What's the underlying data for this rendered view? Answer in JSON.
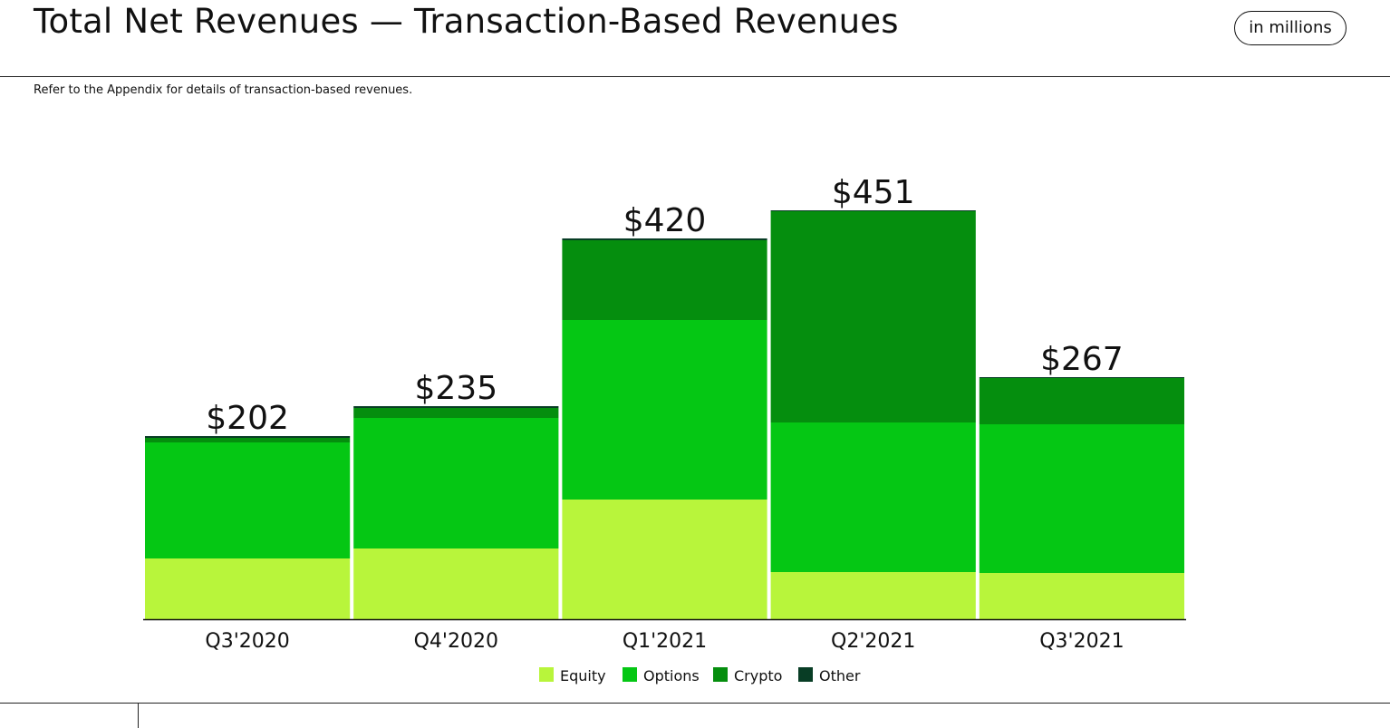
{
  "header": {
    "title": "Total Net Revenues — Transaction-Based Revenues",
    "unit_badge": "in millions",
    "subtitle": "Refer to the Appendix for details of transaction-based revenues."
  },
  "chart_data": {
    "type": "bar",
    "stacked": true,
    "categories": [
      "Q3'2020",
      "Q4'2020",
      "Q1'2021",
      "Q2'2021",
      "Q3'2021"
    ],
    "series": [
      {
        "name": "Equity",
        "color": "#b8f53b",
        "values": [
          67,
          78,
          132,
          52,
          51
        ]
      },
      {
        "name": "Options",
        "color": "#05c714",
        "values": [
          128,
          144,
          198,
          165,
          164
        ]
      },
      {
        "name": "Crypto",
        "color": "#058e0e",
        "values": [
          5,
          11,
          88,
          233,
          51
        ]
      },
      {
        "name": "Other",
        "color": "#083d25",
        "values": [
          2,
          2,
          2,
          1,
          1
        ]
      }
    ],
    "totals": [
      202,
      235,
      420,
      451,
      267
    ],
    "total_labels": [
      "$202",
      "$235",
      "$420",
      "$451",
      "$267"
    ],
    "ylim": [
      0,
      451
    ],
    "grid": false,
    "legend_position": "bottom-center"
  }
}
